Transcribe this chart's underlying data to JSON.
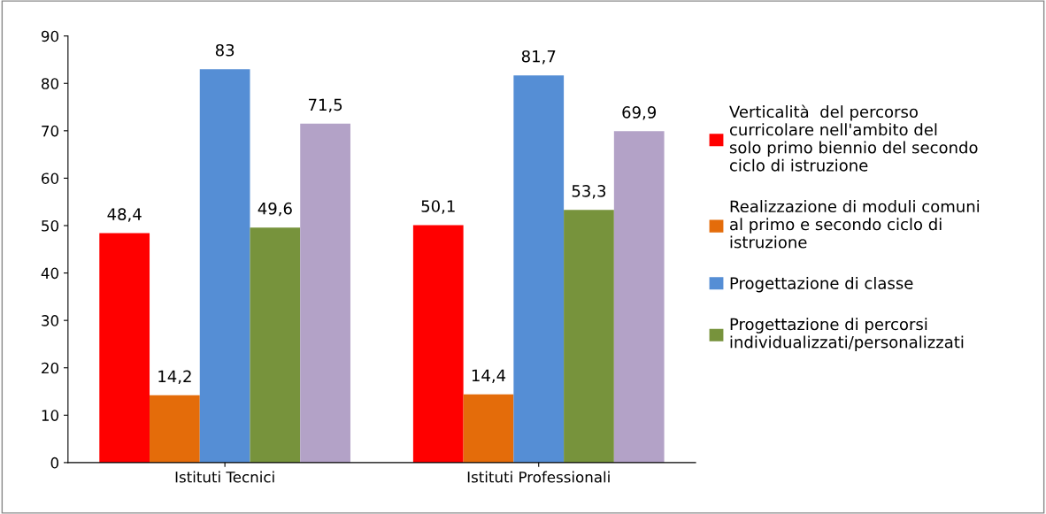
{
  "chart_data": {
    "type": "bar",
    "categories": [
      "Istituti Tecnici",
      "Istituti Professionali"
    ],
    "series": [
      {
        "name": "Verticalità  del percorso curricolare nell'ambito del solo primo biennio del secondo ciclo di istruzione",
        "color": "#ff0000",
        "values": [
          48.4,
          50.1
        ],
        "value_labels": [
          "48,4",
          "50,1"
        ]
      },
      {
        "name": "Realizzazione di moduli comuni al primo e secondo ciclo di istruzione",
        "color": "#e46c0a",
        "values": [
          14.2,
          14.4
        ],
        "value_labels": [
          "14,2",
          "14,4"
        ]
      },
      {
        "name": "Progettazione di classe",
        "color": "#558ed5",
        "values": [
          83,
          81.7
        ],
        "value_labels": [
          "83",
          "81,7"
        ]
      },
      {
        "name": "Progettazione di percorsi individualizzati/personalizzati",
        "color": "#77933c",
        "values": [
          49.6,
          53.3
        ],
        "value_labels": [
          "49,6",
          "53,3"
        ]
      },
      {
        "color": "#b3a2c7",
        "values": [
          71.5,
          69.9
        ],
        "value_labels": [
          "71,5",
          "69,9"
        ]
      }
    ],
    "ylim": [
      0,
      90
    ],
    "yticks": [
      0,
      10,
      20,
      30,
      40,
      50,
      60,
      70,
      80,
      90
    ],
    "grid": false,
    "legend": "right"
  }
}
